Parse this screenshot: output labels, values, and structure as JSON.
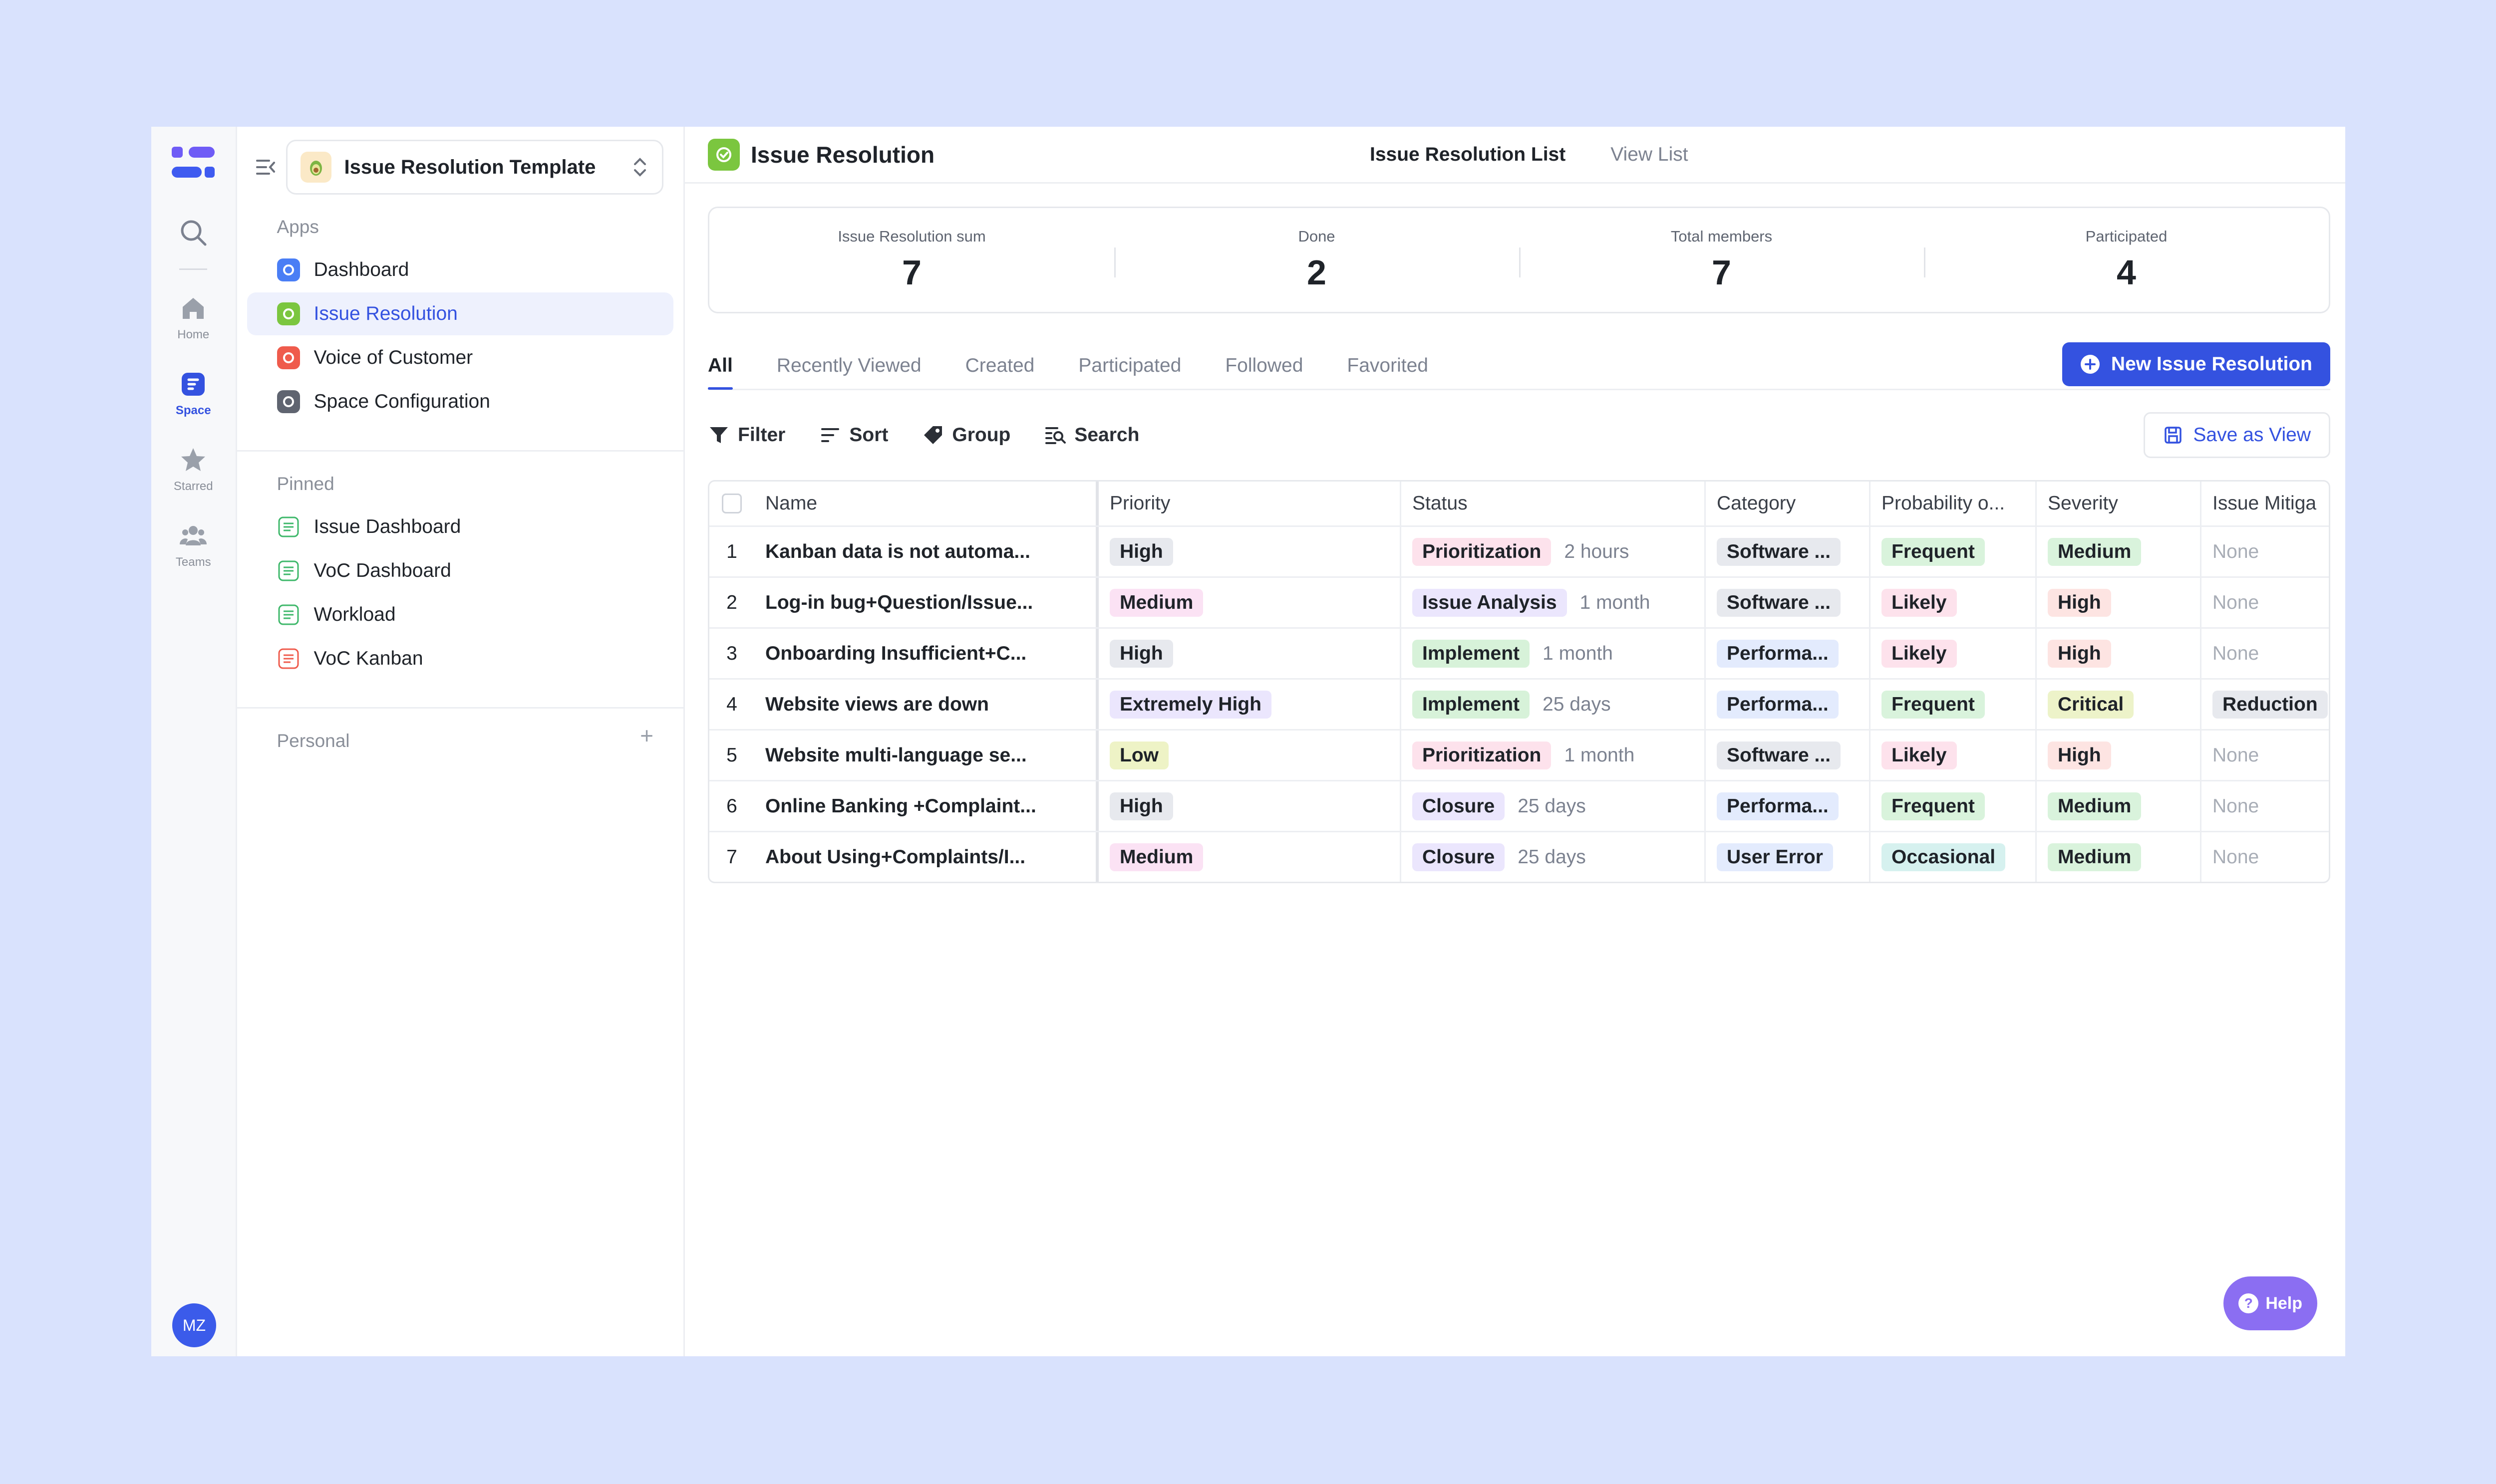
{
  "rail": {
    "items": [
      {
        "label": "Home"
      },
      {
        "label": "Space"
      },
      {
        "label": "Starred"
      },
      {
        "label": "Teams"
      }
    ],
    "avatar": "MZ"
  },
  "sidebar": {
    "template_name": "Issue Resolution Template",
    "apps_heading": "Apps",
    "apps": [
      {
        "label": "Dashboard",
        "color": "#4a7ef5"
      },
      {
        "label": "Issue Resolution",
        "color": "#7bc63f"
      },
      {
        "label": "Voice of Customer",
        "color": "#ef5b4c"
      },
      {
        "label": "Space Configuration",
        "color": "#5f6470"
      }
    ],
    "pinned_heading": "Pinned",
    "pinned": [
      {
        "label": "Issue Dashboard",
        "color": "#3fb86b"
      },
      {
        "label": "VoC Dashboard",
        "color": "#3fb86b"
      },
      {
        "label": "Workload",
        "color": "#3fb86b"
      },
      {
        "label": "VoC Kanban",
        "color": "#ef5b4c"
      }
    ],
    "personal_heading": "Personal"
  },
  "header": {
    "title": "Issue Resolution",
    "tabs": [
      {
        "label": "Issue Resolution List"
      },
      {
        "label": "View List"
      }
    ]
  },
  "stats": [
    {
      "label": "Issue Resolution sum",
      "value": "7"
    },
    {
      "label": "Done",
      "value": "2"
    },
    {
      "label": "Total members",
      "value": "7"
    },
    {
      "label": "Participated",
      "value": "4"
    }
  ],
  "filter_tabs": [
    {
      "label": "All"
    },
    {
      "label": "Recently Viewed"
    },
    {
      "label": "Created"
    },
    {
      "label": "Participated"
    },
    {
      "label": "Followed"
    },
    {
      "label": "Favorited"
    }
  ],
  "new_button": "New Issue Resolution",
  "toolbar": {
    "filter": "Filter",
    "sort": "Sort",
    "group": "Group",
    "search": "Search",
    "save_view": "Save as View"
  },
  "table": {
    "columns": [
      "Name",
      "Priority",
      "Status",
      "Category",
      "Probability o...",
      "Severity",
      "Issue Mitiga"
    ],
    "rows": [
      {
        "no": "1",
        "name": "Kanban data is not automa...",
        "priority": "High",
        "status": "Prioritization",
        "age": "2 hours",
        "category": "Software ...",
        "probability": "Frequent",
        "severity": "Medium",
        "mitigation": "None"
      },
      {
        "no": "2",
        "name": "Log-in bug+Question/Issue...",
        "priority": "Medium",
        "status": "Issue Analysis",
        "age": "1 month",
        "category": "Software ...",
        "probability": "Likely",
        "severity": "High",
        "mitigation": "None"
      },
      {
        "no": "3",
        "name": "Onboarding Insufficient+C...",
        "priority": "High",
        "status": "Implement",
        "age": "1 month",
        "category": "Performa...",
        "probability": "Likely",
        "severity": "High",
        "mitigation": "None"
      },
      {
        "no": "4",
        "name": "Website views are down",
        "priority": "Extremely High",
        "status": "Implement",
        "age": "25 days",
        "category": "Performa...",
        "probability": "Frequent",
        "severity": "Critical",
        "mitigation": "Reduction"
      },
      {
        "no": "5",
        "name": "Website multi-language se...",
        "priority": "Low",
        "status": "Prioritization",
        "age": "1 month",
        "category": "Software ...",
        "probability": "Likely",
        "severity": "High",
        "mitigation": "None"
      },
      {
        "no": "6",
        "name": "Online Banking +Complaint...",
        "priority": "High",
        "status": "Closure",
        "age": "25 days",
        "category": "Performa...",
        "probability": "Frequent",
        "severity": "Medium",
        "mitigation": "None"
      },
      {
        "no": "7",
        "name": "About Using+Complaints/I...",
        "priority": "Medium",
        "status": "Closure",
        "age": "25 days",
        "category": "User Error",
        "probability": "Occasional",
        "severity": "Medium",
        "mitigation": "None"
      }
    ]
  },
  "help": "Help",
  "colors": {
    "accent": "#3452e0",
    "help": "#8b6ef2",
    "background": "#d9e2fd"
  }
}
